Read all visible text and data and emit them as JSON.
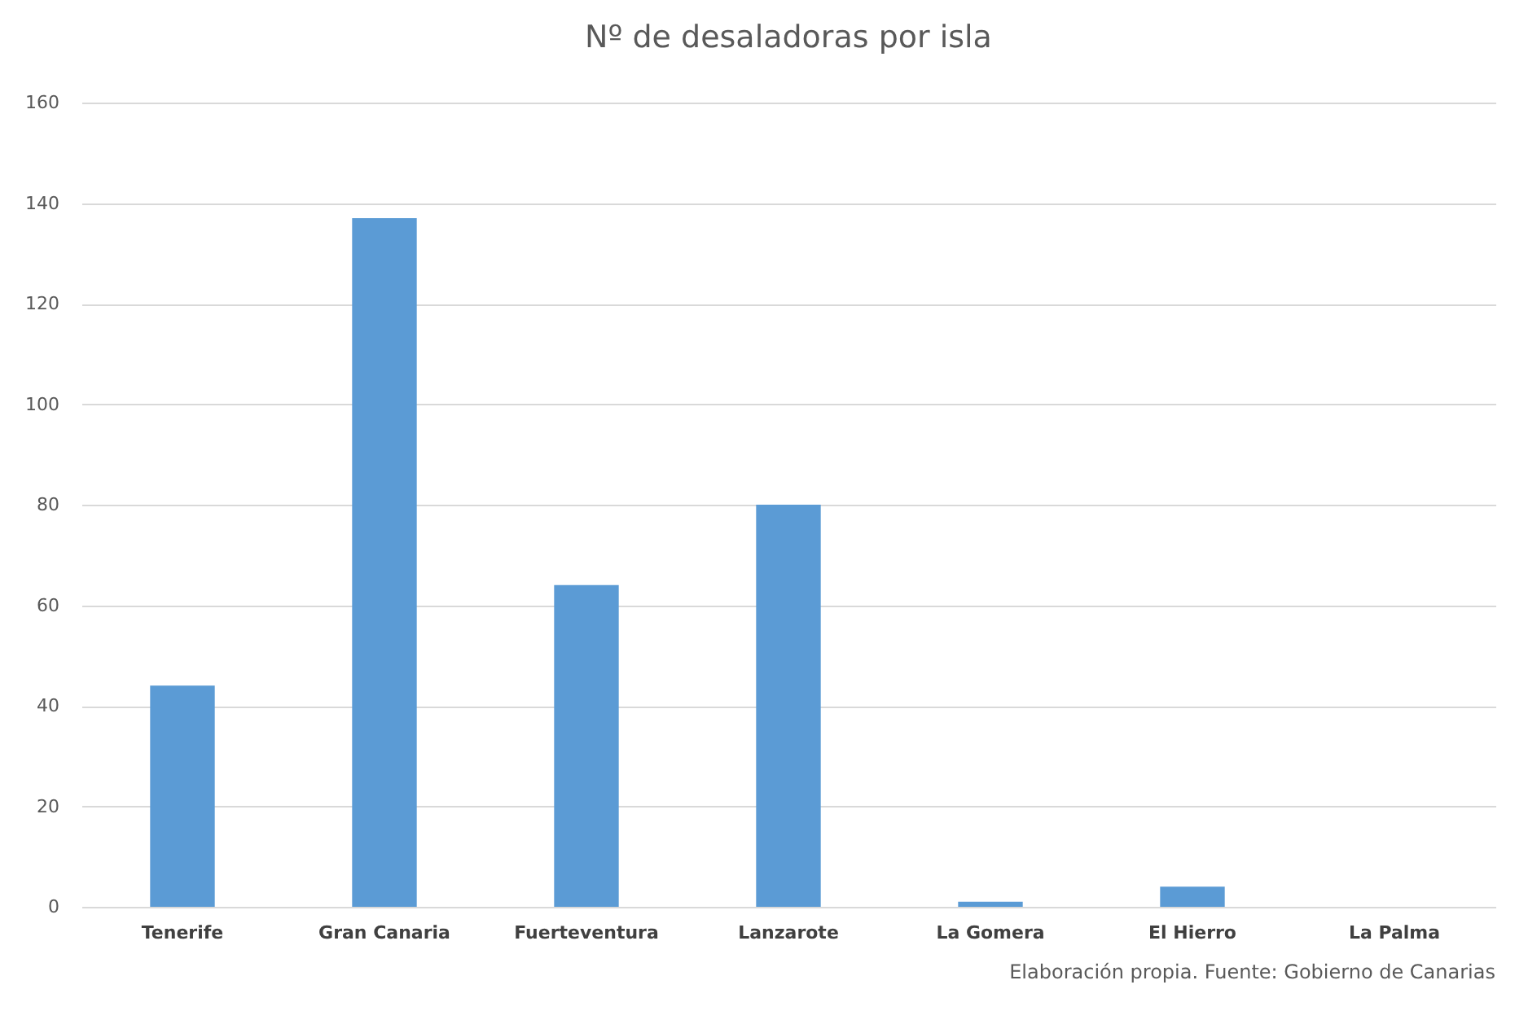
{
  "chart_data": {
    "type": "bar",
    "title": "Nº de desaladoras por isla",
    "categories": [
      "Tenerife",
      "Gran Canaria",
      "Fuerteventura",
      "Lanzarote",
      "La Gomera",
      "El Hierro",
      "La Palma"
    ],
    "values": [
      44,
      137,
      64,
      80,
      1,
      4,
      0
    ],
    "color": "#5b9bd5",
    "ylim": [
      0,
      160
    ],
    "yticks": [
      0,
      20,
      40,
      60,
      80,
      100,
      120,
      140,
      160
    ],
    "grid": "y",
    "annotations": [
      "Elaboración propia. Fuente: Gobierno de Canarias"
    ]
  }
}
